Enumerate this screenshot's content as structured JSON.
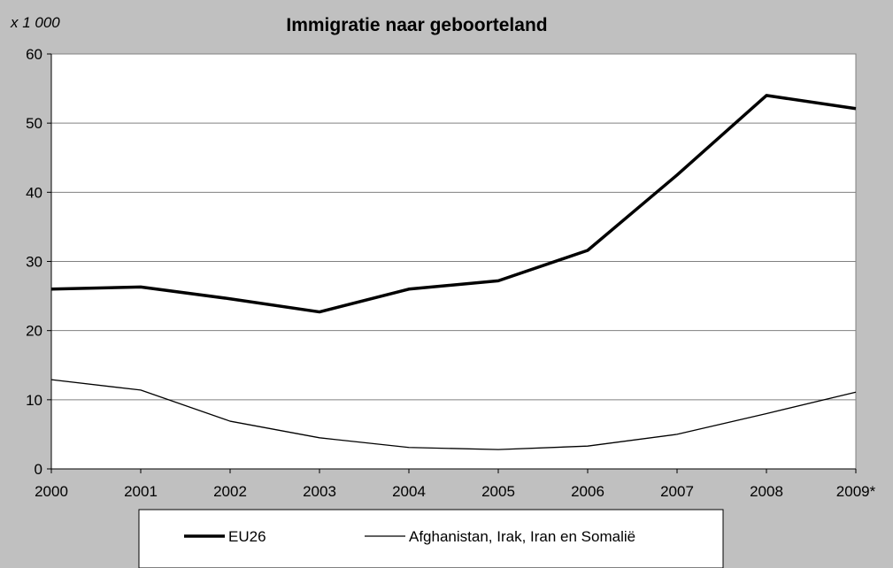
{
  "chart_data": {
    "type": "line",
    "title": "Immigratie naar geboorteland",
    "unit_label": "x 1 000",
    "xlabel": "",
    "ylabel": "",
    "categories": [
      "2000",
      "2001",
      "2002",
      "2003",
      "2004",
      "2005",
      "2006",
      "2007",
      "2008",
      "2009*"
    ],
    "ylim": [
      0,
      60
    ],
    "yticks": [
      0,
      10,
      20,
      30,
      40,
      50,
      60
    ],
    "grid": true,
    "legend_position": "bottom",
    "series": [
      {
        "name": "EU26",
        "values": [
          26.0,
          26.3,
          24.6,
          22.7,
          26.0,
          27.2,
          31.6,
          42.5,
          54.0,
          52.1
        ],
        "color": "#000000",
        "style": "thick"
      },
      {
        "name": "Afghanistan, Irak, Iran en Somalië",
        "values": [
          12.9,
          11.4,
          6.9,
          4.5,
          3.1,
          2.8,
          3.3,
          5.0,
          8.0,
          11.1
        ],
        "color": "#000000",
        "style": "thin"
      }
    ]
  },
  "colors": {
    "background": "#c0c0c0",
    "plot_area": "#ffffff",
    "gridline": "#808080",
    "line": "#000000"
  }
}
